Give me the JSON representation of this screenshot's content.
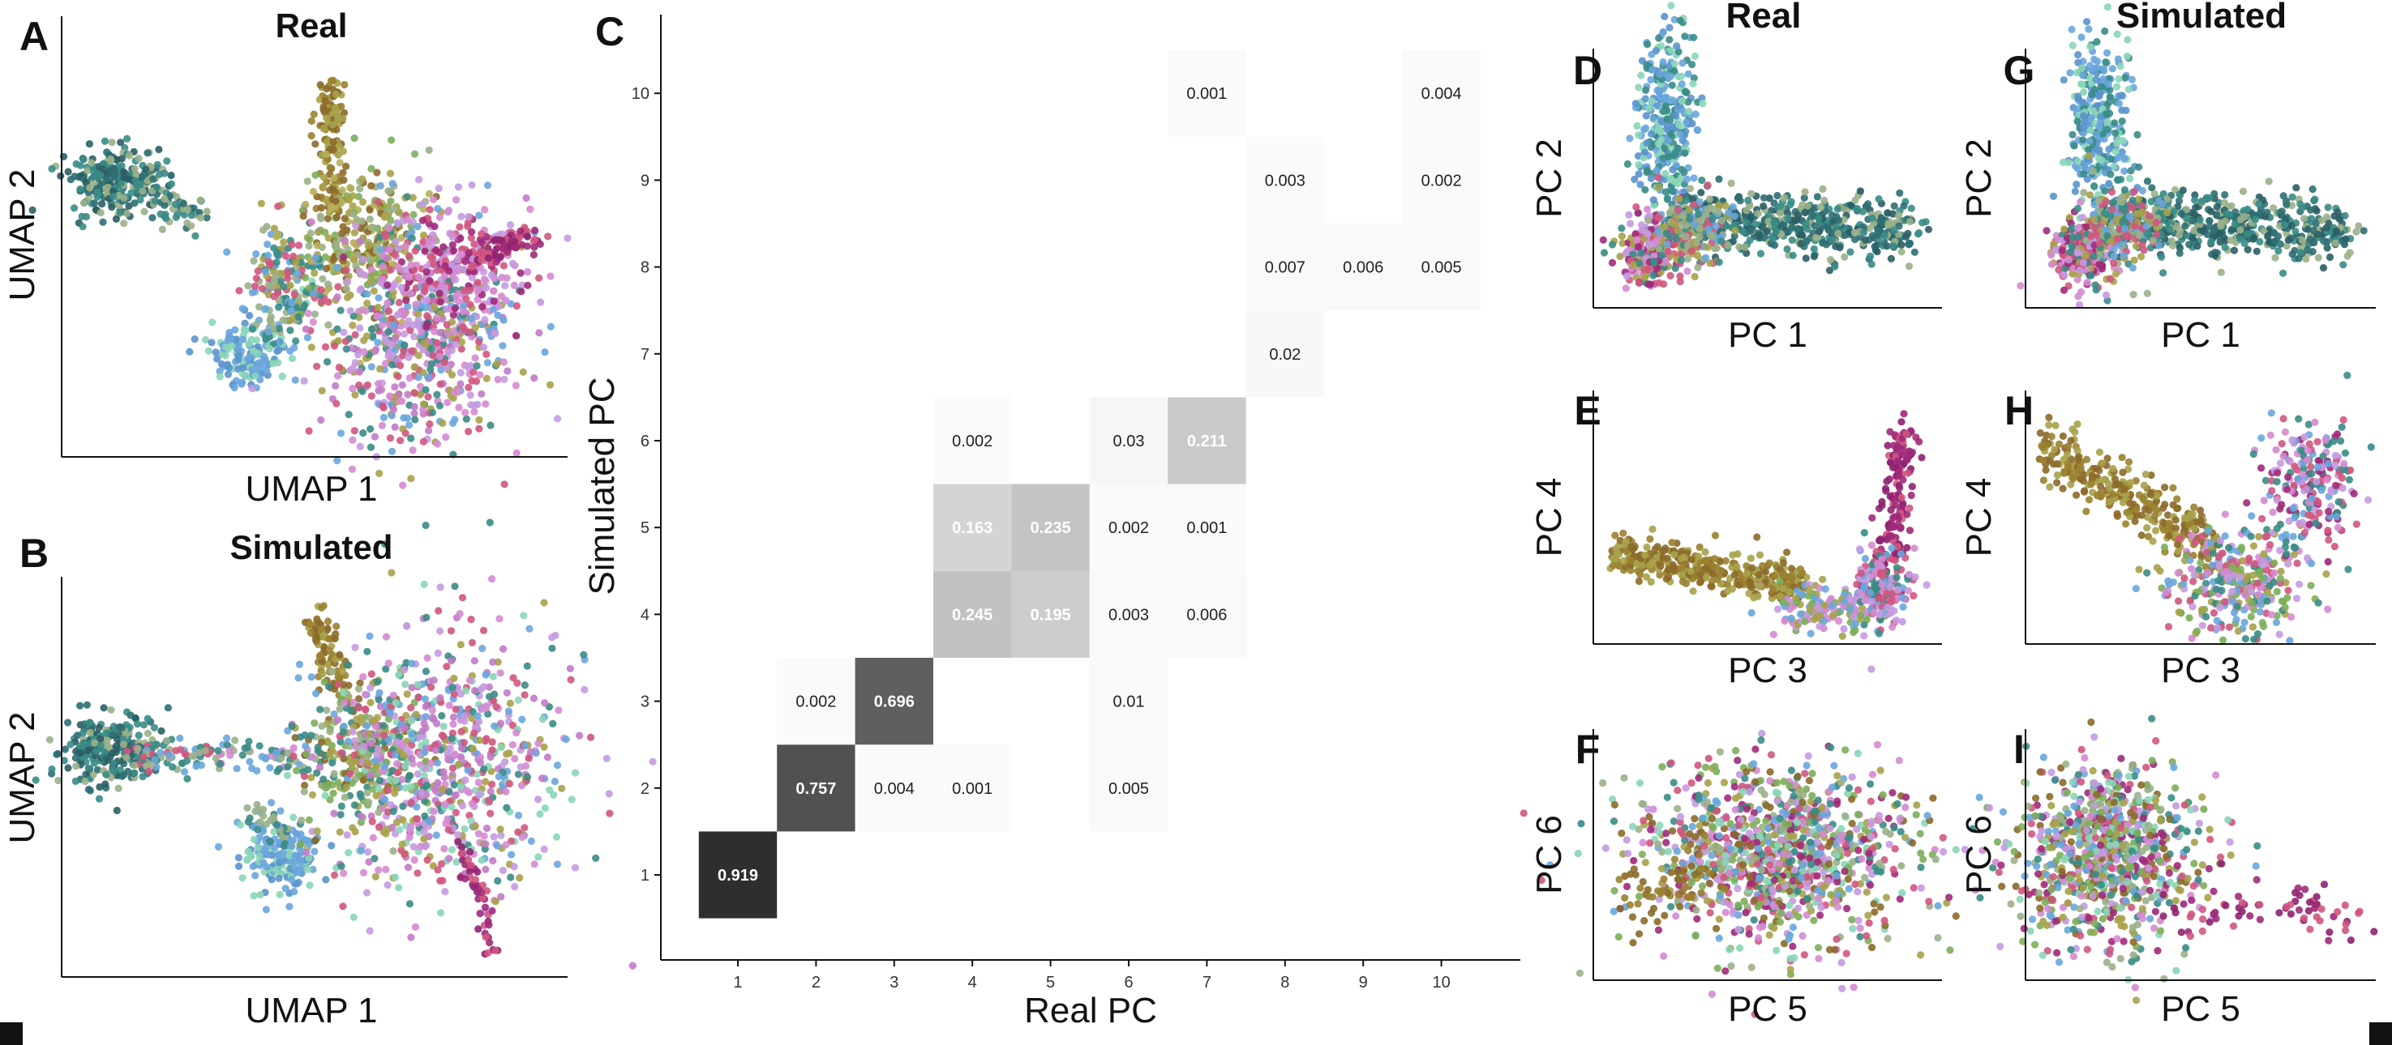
{
  "figure": {
    "title_real": "Real",
    "title_simulated": "Simulated",
    "palette": {
      "teal_dark": "#2f6f73",
      "teal": "#3a8c86",
      "blue": "#6aa6dd",
      "olive": "#a7a24a",
      "brown": "#8c6a2a",
      "pink": "#d58ad0",
      "rose": "#d0567f",
      "magenta": "#a02a7a",
      "lilac": "#c49ae0",
      "mint": "#8ad6b8",
      "green": "#7cae5a",
      "sage": "#9bb08a"
    }
  },
  "chart_data": [
    {
      "panel": "A",
      "type": "scatter",
      "title": "Real",
      "xlabel": "UMAP 1",
      "ylabel": "UMAP 2",
      "ticks": false,
      "note": "UMAP embedding of real cells colored by cluster"
    },
    {
      "panel": "B",
      "type": "scatter",
      "title": "Simulated",
      "xlabel": "UMAP 1",
      "ylabel": "UMAP 2",
      "ticks": false,
      "note": "UMAP embedding of simulated cells colored by cluster"
    },
    {
      "panel": "C",
      "type": "heatmap",
      "xlabel": "Real PC",
      "ylabel": "Simulated PC",
      "x": [
        1,
        2,
        3,
        4,
        5,
        6,
        7,
        8,
        9,
        10
      ],
      "y": [
        1,
        2,
        3,
        4,
        5,
        6,
        7,
        8,
        9,
        10
      ],
      "xlim": [
        0.5,
        10.5
      ],
      "ylim": [
        0.5,
        10.5
      ],
      "cells": [
        {
          "x": 1,
          "y": 1,
          "value": 0.919
        },
        {
          "x": 2,
          "y": 2,
          "value": 0.757
        },
        {
          "x": 3,
          "y": 2,
          "value": 0.004
        },
        {
          "x": 4,
          "y": 2,
          "value": 0.001
        },
        {
          "x": 6,
          "y": 2,
          "value": 0.005
        },
        {
          "x": 2,
          "y": 3,
          "value": 0.002
        },
        {
          "x": 3,
          "y": 3,
          "value": 0.696
        },
        {
          "x": 6,
          "y": 3,
          "value": 0.01
        },
        {
          "x": 4,
          "y": 4,
          "value": 0.245
        },
        {
          "x": 5,
          "y": 4,
          "value": 0.195
        },
        {
          "x": 6,
          "y": 4,
          "value": 0.003
        },
        {
          "x": 7,
          "y": 4,
          "value": 0.006
        },
        {
          "x": 4,
          "y": 5,
          "value": 0.163
        },
        {
          "x": 5,
          "y": 5,
          "value": 0.235
        },
        {
          "x": 6,
          "y": 5,
          "value": 0.002
        },
        {
          "x": 7,
          "y": 5,
          "value": 0.001
        },
        {
          "x": 4,
          "y": 6,
          "value": 0.002
        },
        {
          "x": 6,
          "y": 6,
          "value": 0.03
        },
        {
          "x": 7,
          "y": 6,
          "value": 0.211
        },
        {
          "x": 8,
          "y": 7,
          "value": 0.02
        },
        {
          "x": 8,
          "y": 8,
          "value": 0.007
        },
        {
          "x": 9,
          "y": 8,
          "value": 0.006
        },
        {
          "x": 10,
          "y": 8,
          "value": 0.005
        },
        {
          "x": 8,
          "y": 9,
          "value": 0.003
        },
        {
          "x": 10,
          "y": 9,
          "value": 0.002
        },
        {
          "x": 7,
          "y": 10,
          "value": 0.001
        },
        {
          "x": 10,
          "y": 10,
          "value": 0.004
        }
      ],
      "colormap": "white to black"
    },
    {
      "panel": "D",
      "type": "scatter",
      "xlabel": "PC 1",
      "ylabel": "PC 2",
      "ticks": false
    },
    {
      "panel": "E",
      "type": "scatter",
      "xlabel": "PC 3",
      "ylabel": "PC 4",
      "ticks": false
    },
    {
      "panel": "F",
      "type": "scatter",
      "xlabel": "PC 5",
      "ylabel": "PC 6",
      "ticks": false
    },
    {
      "panel": "G",
      "type": "scatter",
      "xlabel": "PC 1",
      "ylabel": "PC 2",
      "ticks": false
    },
    {
      "panel": "H",
      "type": "scatter",
      "xlabel": "PC 3",
      "ylabel": "PC 4",
      "ticks": false
    },
    {
      "panel": "I",
      "type": "scatter",
      "xlabel": "PC 5",
      "ylabel": "PC 6",
      "ticks": false
    }
  ]
}
